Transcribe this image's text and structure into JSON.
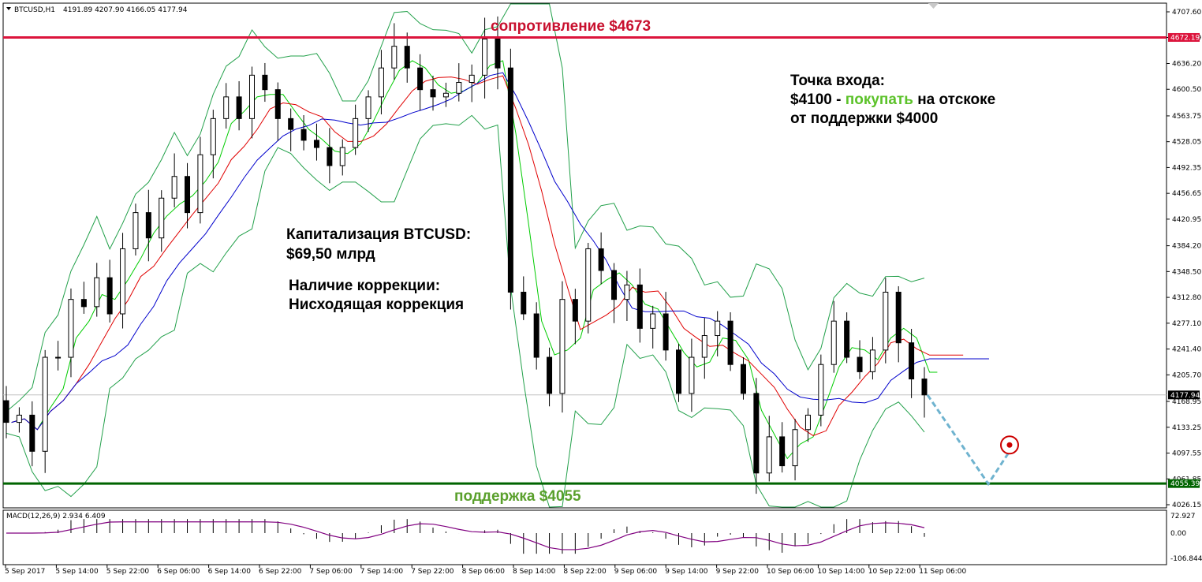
{
  "header": {
    "symbol": "BTCUSD,H1",
    "ohlc": "4191.89 4207.90 4166.05 4177.94"
  },
  "levels": {
    "resistance_label": "сопротивление $4673",
    "support_label": "поддержка $4055",
    "resistance_value": 4672.19,
    "resistance_tag": "4672.19",
    "support_value": 4055.39,
    "support_tag": "4055.39",
    "current_value": 4177.94,
    "current_tag": "4177.94",
    "resistance_color": "#dc143c",
    "support_color": "#006400"
  },
  "annotations": {
    "cap_line1": "Капитализация BTCUSD:",
    "cap_line2": "$69,50 млрд",
    "corr_line1": "Наличие коррекции:",
    "corr_line2": "Нисходящая коррекция",
    "entry_line1": "Точка входа:",
    "entry_line2_a": "$4100 - ",
    "entry_line2_b": "покупать",
    "entry_line2_c": " на отскоке",
    "entry_line3": "от поддержки $4000"
  },
  "macd": {
    "label": "MACD(12,26,9) 2.934 6.409",
    "axis": [
      "72.927",
      "0.00",
      "-106.844"
    ],
    "axis_values": [
      72.927,
      0.0,
      -106.844
    ]
  },
  "chart_data": {
    "type": "candlestick",
    "timeframe": "H1",
    "price_axis_ticks": [
      "4707.60",
      "4672.19",
      "4636.20",
      "4600.50",
      "4563.75",
      "4528.05",
      "4492.35",
      "4456.65",
      "4420.95",
      "4384.20",
      "4348.50",
      "4312.80",
      "4277.10",
      "4241.40",
      "4205.70",
      "4168.95",
      "4133.25",
      "4097.55",
      "4061.85",
      "4026.15"
    ],
    "ylim": [
      4010,
      4722
    ],
    "time_axis_labels": [
      "5 Sep 2017",
      "5 Sep 14:00",
      "5 Sep 22:00",
      "6 Sep 06:00",
      "6 Sep 14:00",
      "6 Sep 22:00",
      "7 Sep 06:00",
      "7 Sep 14:00",
      "7 Sep 22:00",
      "8 Sep 06:00",
      "8 Sep 14:00",
      "8 Sep 22:00",
      "9 Sep 06:00",
      "9 Sep 14:00",
      "9 Sep 22:00",
      "10 Sep 06:00",
      "10 Sep 14:00",
      "10 Sep 22:00",
      "11 Sep 06:00"
    ],
    "close_path": [
      4140,
      4150,
      4100,
      4230,
      4230,
      4310,
      4300,
      4340,
      4290,
      4380,
      4430,
      4395,
      4450,
      4480,
      4430,
      4510,
      4560,
      4590,
      4560,
      4620,
      4600,
      4560,
      4545,
      4530,
      4520,
      4495,
      4520,
      4560,
      4590,
      4630,
      4660,
      4630,
      4600,
      4590,
      4595,
      4610,
      4620,
      4670,
      4630,
      4320,
      4290,
      4230,
      4180,
      4310,
      4280,
      4380,
      4350,
      4310,
      4330,
      4270,
      4290,
      4240,
      4180,
      4230,
      4260,
      4280,
      4220,
      4180,
      4070,
      4120,
      4080,
      4130,
      4150,
      4220,
      4280,
      4230,
      4210,
      4240,
      4320,
      4250,
      4200,
      4177.94
    ],
    "series": [
      {
        "name": "MA fast",
        "color": "#00cc00"
      },
      {
        "name": "MA medium",
        "color": "#e00000"
      },
      {
        "name": "MA slow",
        "color": "#0000cc"
      },
      {
        "name": "Bollinger Bands",
        "color": "#22a04a"
      }
    ],
    "forecast": {
      "from": 4177.94,
      "low": 4055,
      "to": 4100
    },
    "grid": false
  }
}
